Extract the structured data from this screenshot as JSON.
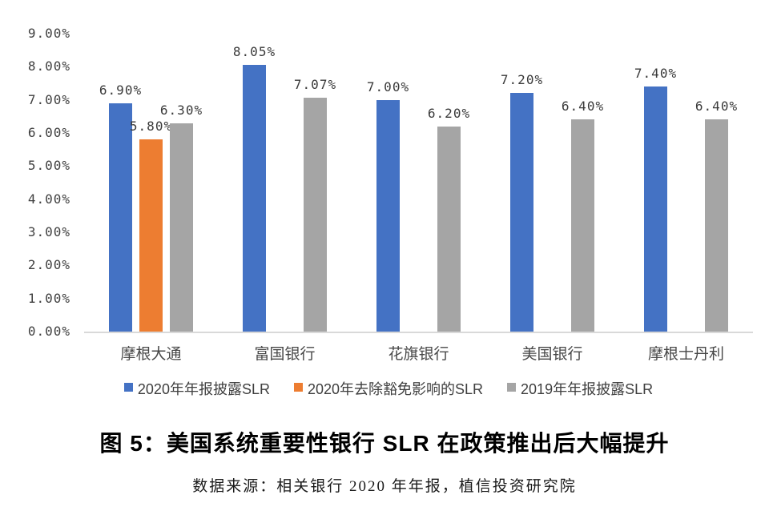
{
  "figure": {
    "title": "图 5：美国系统重要性银行 SLR 在政策推出后大幅提升",
    "source": "数据来源：相关银行 2020 年年报，植信投资研究院"
  },
  "chart_data": {
    "type": "bar",
    "title": "图 5：美国系统重要性银行 SLR 在政策推出后大幅提升",
    "categories": [
      "摩根大通",
      "富国银行",
      "花旗银行",
      "美国银行",
      "摩根士丹利"
    ],
    "series": [
      {
        "name": "2020年年报披露SLR",
        "color": "#4472C4",
        "values": [
          6.9,
          8.05,
          7.0,
          7.2,
          7.4
        ],
        "labels": [
          "6.90%",
          "8.05%",
          "7.00%",
          "7.20%",
          "7.40%"
        ]
      },
      {
        "name": "2020年去除豁免影响的SLR",
        "color": "#ED7D31",
        "values": [
          5.8,
          null,
          null,
          null,
          null
        ],
        "labels": [
          "5.80%",
          null,
          null,
          null,
          null
        ]
      },
      {
        "name": "2019年年报披露SLR",
        "color": "#A5A5A5",
        "values": [
          6.3,
          7.07,
          6.2,
          6.4,
          6.4
        ],
        "labels": [
          "6.30%",
          "7.07%",
          "6.20%",
          "6.40%",
          "6.40%"
        ]
      }
    ],
    "y_axis": {
      "min": 0,
      "max": 9,
      "tick_step": 1,
      "ticks": [
        "0.00%",
        "1.00%",
        "2.00%",
        "3.00%",
        "4.00%",
        "5.00%",
        "6.00%",
        "7.00%",
        "8.00%",
        "9.00%"
      ]
    },
    "grid": false,
    "legend_position": "bottom",
    "axis_line_color": "#D9D9D9"
  }
}
